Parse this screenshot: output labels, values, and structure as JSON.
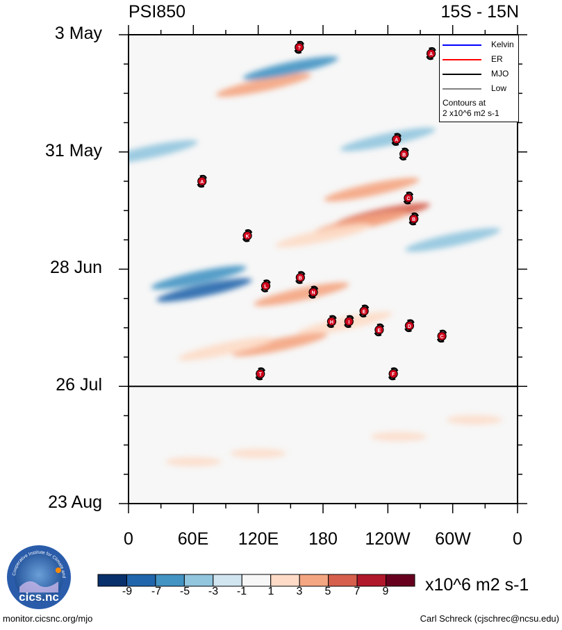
{
  "chart_data": {
    "type": "heatmap",
    "title_left": "PSI850",
    "title_right": "15S - 15N",
    "y_tick_labels": [
      "3 May",
      "31 May",
      "28 Jun",
      "26 Jul",
      "23 Aug"
    ],
    "x_tick_labels": [
      "0",
      "60E",
      "120E",
      "180",
      "120W",
      "60W",
      "0"
    ],
    "xlim_deg": [
      0,
      360
    ],
    "ylim_days": [
      0,
      112
    ],
    "observation_end_day": 84,
    "legend": [
      {
        "label": "Kelvin",
        "color": "#0000ff"
      },
      {
        "label": "ER",
        "color": "#ff0000"
      },
      {
        "label": "MJO",
        "color": "#000000"
      },
      {
        "label": "Low",
        "color": "#808080"
      }
    ],
    "contour_note_line1": "Contours at",
    "contour_note_line2": "2 x10^6 m2 s-1",
    "colorbar": {
      "levels": [
        "-9",
        "-7",
        "-5",
        "-3",
        "-1",
        "1",
        "3",
        "5",
        "7",
        "9"
      ],
      "colors": [
        "#08306b",
        "#2166ac",
        "#4393c3",
        "#92c5de",
        "#d1e5f0",
        "#f7f7f7",
        "#fddbc7",
        "#f4a582",
        "#d6604d",
        "#b2182b",
        "#67001f"
      ],
      "units": "x10^6 m2 s-1"
    },
    "anomaly_patches": [
      {
        "lon": 225,
        "day": 37,
        "value": 5
      },
      {
        "lon": 235,
        "day": 43,
        "value": 7
      },
      {
        "lon": 215,
        "day": 45,
        "value": 5
      },
      {
        "lon": 180,
        "day": 48,
        "value": 3
      },
      {
        "lon": 70,
        "day": 61,
        "value": -7
      },
      {
        "lon": 65,
        "day": 58,
        "value": -5
      },
      {
        "lon": 125,
        "day": 12,
        "value": 5
      },
      {
        "lon": 160,
        "day": 62,
        "value": 5
      },
      {
        "lon": 200,
        "day": 69,
        "value": 3
      },
      {
        "lon": 140,
        "day": 74,
        "value": 5
      },
      {
        "lon": 90,
        "day": 75,
        "value": 3
      },
      {
        "lon": 150,
        "day": 8,
        "value": -5
      },
      {
        "lon": 20,
        "day": 28,
        "value": -3
      },
      {
        "lon": 300,
        "day": 49,
        "value": -3
      },
      {
        "lon": 240,
        "day": 25,
        "value": -3
      }
    ],
    "storm_markers": [
      {
        "letter": "A",
        "lon": 280,
        "day": 4.5
      },
      {
        "letter": "?",
        "lon": 158,
        "day": 3
      },
      {
        "letter": "A",
        "lon": 248,
        "day": 25
      },
      {
        "letter": "B",
        "lon": 255,
        "day": 28.5
      },
      {
        "letter": "A",
        "lon": 68,
        "day": 35
      },
      {
        "letter": "C",
        "lon": 259,
        "day": 39
      },
      {
        "letter": "B",
        "lon": 264,
        "day": 44
      },
      {
        "letter": "K",
        "lon": 110,
        "day": 48
      },
      {
        "letter": "B",
        "lon": 159,
        "day": 58
      },
      {
        "letter": "L",
        "lon": 127,
        "day": 60
      },
      {
        "letter": "N",
        "lon": 171,
        "day": 61.5
      },
      {
        "letter": "E",
        "lon": 218,
        "day": 66
      },
      {
        "letter": "H",
        "lon": 188,
        "day": 68.5
      },
      {
        "letter": "I",
        "lon": 204,
        "day": 68.5
      },
      {
        "letter": "E",
        "lon": 232,
        "day": 70.5
      },
      {
        "letter": "D",
        "lon": 260,
        "day": 69.5
      },
      {
        "letter": "C",
        "lon": 290,
        "day": 72
      },
      {
        "letter": "T",
        "lon": 122,
        "day": 81
      },
      {
        "letter": "F",
        "lon": 245,
        "day": 81
      }
    ]
  },
  "footer": {
    "left": "monitor.cicsnc.org/mjo",
    "right": "Carl Schreck (cjschrec@ncsu.edu)"
  },
  "logo": {
    "text": "cics.nc",
    "ring_text": "Cooperative Institute for Climate and Satellites"
  }
}
